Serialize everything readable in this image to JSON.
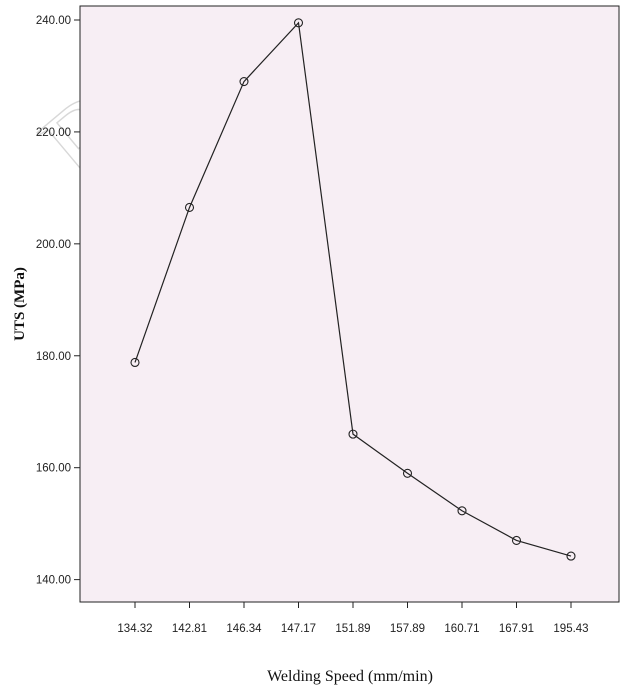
{
  "chart_data": {
    "type": "line",
    "xlabel": "Welding Speed (mm/min)",
    "ylabel": "UTS (MPa)",
    "categories": [
      "134.32",
      "142.81",
      "146.34",
      "147.17",
      "151.89",
      "157.89",
      "160.71",
      "167.91",
      "195.43"
    ],
    "values": [
      178.8,
      206.5,
      229.0,
      239.5,
      166.0,
      159.0,
      152.3,
      147.0,
      144.2
    ],
    "y_ticks": [
      "140.00",
      "160.00",
      "180.00",
      "200.00",
      "220.00",
      "240.00"
    ],
    "ylim": [
      136,
      242.5
    ],
    "grid": false,
    "marker": "open-circle",
    "colors": {
      "plot_background": "#f7eef4",
      "line": "#222222",
      "axis": "#222222"
    }
  },
  "watermark": {
    "text": "RTI"
  }
}
